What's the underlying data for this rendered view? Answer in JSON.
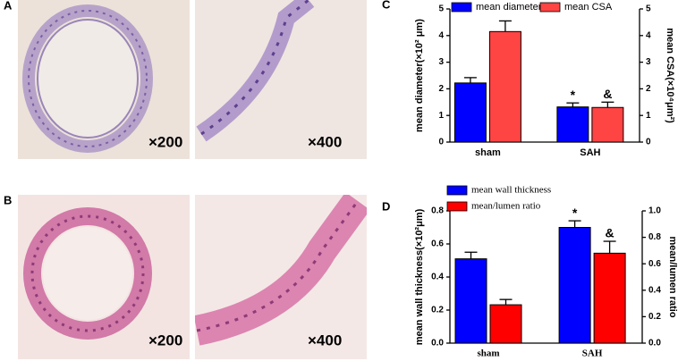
{
  "panels": [
    {
      "label": "A",
      "magnifications": [
        "×200",
        "×400"
      ]
    },
    {
      "label": "B",
      "magnifications": [
        "×200",
        "×400"
      ]
    }
  ],
  "chart_data": [
    {
      "type": "bar",
      "panel_label": "C",
      "y_label": "mean diameter(×10² μm)",
      "y2_label": "mean CSA(×10⁴μm²)",
      "categories": [
        "sham",
        "SAH"
      ],
      "series": [
        {
          "name": "mean diameter",
          "color": "#0000ff",
          "values": [
            2.22,
            1.32
          ],
          "errors": [
            0.2,
            0.15
          ]
        },
        {
          "name": "mean CSA",
          "color": "#ff4444",
          "axis": "y2",
          "values": [
            4.15,
            1.3
          ],
          "errors": [
            0.4,
            0.2
          ]
        }
      ],
      "ylim": [
        0,
        5
      ],
      "yticks": [
        0,
        1,
        2,
        3,
        4,
        5
      ],
      "y2lim": [
        0,
        5
      ],
      "y2ticks": [
        0,
        1,
        2,
        3,
        4,
        5
      ],
      "annotations": [
        "*",
        "&"
      ],
      "legend": "top"
    },
    {
      "type": "bar",
      "panel_label": "D",
      "y_label": "mean wall thickness(×10²μm)",
      "y2_label": "mean/lumen ratio",
      "categories": [
        "sham",
        "SAH"
      ],
      "series": [
        {
          "name": "mean wall thickness",
          "color": "#0000ff",
          "values": [
            0.51,
            0.7
          ],
          "errors": [
            0.04,
            0.04
          ]
        },
        {
          "name": "mean/lumen ratio",
          "color": "#ff0000",
          "axis": "y2",
          "values": [
            0.29,
            0.68
          ],
          "errors": [
            0.04,
            0.09
          ]
        }
      ],
      "ylim": [
        0,
        0.8
      ],
      "yticks": [
        {
          "value": 0,
          "label": "0.0"
        },
        0.2,
        0.4,
        0.6,
        0.8
      ],
      "y2lim": [
        0,
        1
      ],
      "y2ticks": [
        {
          "value": 0,
          "label": "0.0"
        },
        0.2,
        0.4,
        0.6,
        0.8,
        {
          "value": 1,
          "label": "1.0"
        }
      ],
      "annotations": [
        "*",
        "&"
      ],
      "legend": "top-left"
    }
  ]
}
